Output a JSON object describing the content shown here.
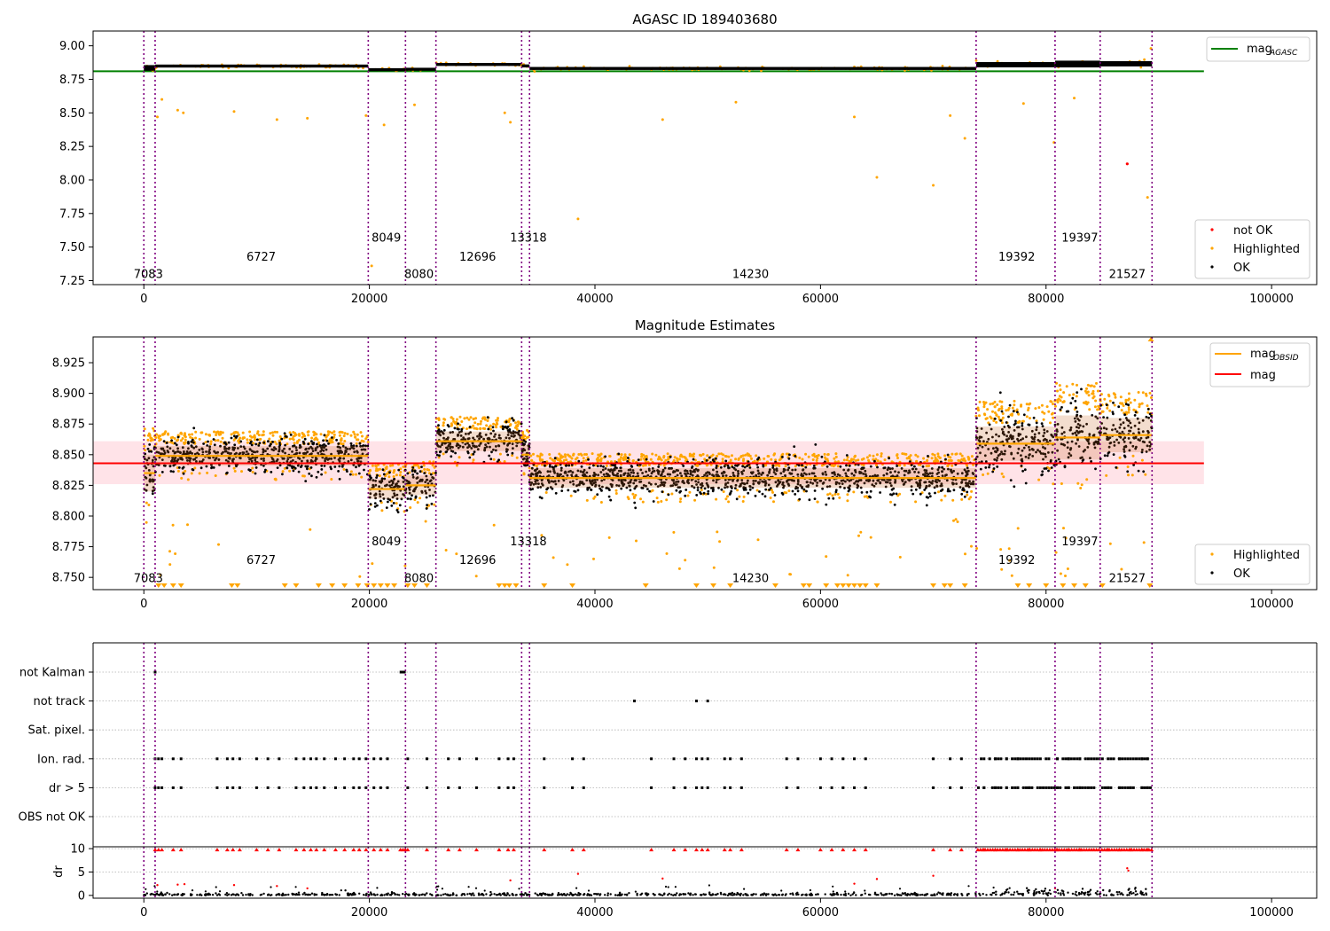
{
  "colors": {
    "axis": "#000000",
    "ok": "#000000",
    "highlighted": "#ffa500",
    "not_ok": "#ff0000",
    "obs_line": "#800080",
    "agasc_line": "#008000",
    "mean_line": "#ff0000",
    "band": "#ffc0cb",
    "obsid_line": "#ffa500"
  },
  "chart_data": [
    {
      "type": "scatter",
      "title": "AGASC ID 189403680",
      "xlim": [
        -4500,
        104000
      ],
      "ylim": [
        7.22,
        9.11
      ],
      "xticks": [
        0,
        20000,
        40000,
        60000,
        80000,
        100000
      ],
      "xtick_labels": [
        "0",
        "20000",
        "40000",
        "60000",
        "80000",
        "100000"
      ],
      "yticks": [
        7.25,
        7.5,
        7.75,
        8.0,
        8.25,
        8.5,
        8.75,
        9.0
      ],
      "ytick_labels": [
        "7.25",
        "7.50",
        "7.75",
        "8.00",
        "8.25",
        "8.50",
        "8.75",
        "9.00"
      ],
      "obs_boundaries": [
        0,
        1000,
        19900,
        23200,
        25900,
        33500,
        34200,
        73800,
        80800,
        84800,
        89400
      ],
      "obs_labels": [
        {
          "x": 400,
          "y": 7.27,
          "text": "7083"
        },
        {
          "x": 10400,
          "y": 7.4,
          "text": "6727"
        },
        {
          "x": 21500,
          "y": 7.54,
          "text": "8049"
        },
        {
          "x": 24400,
          "y": 7.27,
          "text": "8080"
        },
        {
          "x": 29600,
          "y": 7.4,
          "text": "12696"
        },
        {
          "x": 34100,
          "y": 7.54,
          "text": "13318"
        },
        {
          "x": 53800,
          "y": 7.27,
          "text": "14230"
        },
        {
          "x": 77400,
          "y": 7.4,
          "text": "19392"
        },
        {
          "x": 83000,
          "y": 7.54,
          "text": "19397"
        },
        {
          "x": 87200,
          "y": 7.27,
          "text": "21527"
        }
      ],
      "segments": [
        {
          "x0": 0,
          "x1": 1000,
          "y": 8.835,
          "spread": 0.015
        },
        {
          "x0": 1000,
          "x1": 19900,
          "y": 8.849,
          "spread": 0.008
        },
        {
          "x0": 19900,
          "x1": 23200,
          "y": 8.822,
          "spread": 0.008
        },
        {
          "x0": 23200,
          "x1": 25900,
          "y": 8.825,
          "spread": 0.008
        },
        {
          "x0": 25900,
          "x1": 33500,
          "y": 8.861,
          "spread": 0.008
        },
        {
          "x0": 33500,
          "x1": 34200,
          "y": 8.85,
          "spread": 0.008
        },
        {
          "x0": 34200,
          "x1": 73800,
          "y": 8.831,
          "spread": 0.008
        },
        {
          "x0": 73800,
          "x1": 80800,
          "y": 8.859,
          "spread": 0.014
        },
        {
          "x0": 80800,
          "x1": 84800,
          "y": 8.864,
          "spread": 0.018
        },
        {
          "x0": 84800,
          "x1": 89400,
          "y": 8.866,
          "spread": 0.014
        }
      ],
      "agasc_mag": 8.81,
      "agasc_line_xlim": [
        -4500,
        94000
      ],
      "not_ok_points": [
        {
          "x": 87200,
          "y": 8.12
        }
      ],
      "highlighted_outliers": [
        {
          "x": 1200,
          "y": 8.47
        },
        {
          "x": 1600,
          "y": 8.6
        },
        {
          "x": 3000,
          "y": 8.52
        },
        {
          "x": 3500,
          "y": 8.5
        },
        {
          "x": 8000,
          "y": 8.51
        },
        {
          "x": 11800,
          "y": 8.45
        },
        {
          "x": 14500,
          "y": 8.46
        },
        {
          "x": 19700,
          "y": 8.48
        },
        {
          "x": 20200,
          "y": 7.36
        },
        {
          "x": 21300,
          "y": 8.41
        },
        {
          "x": 24000,
          "y": 8.56
        },
        {
          "x": 32000,
          "y": 8.5
        },
        {
          "x": 32500,
          "y": 8.43
        },
        {
          "x": 38500,
          "y": 7.71
        },
        {
          "x": 46000,
          "y": 8.45
        },
        {
          "x": 52500,
          "y": 8.58
        },
        {
          "x": 63000,
          "y": 8.47
        },
        {
          "x": 65000,
          "y": 8.02
        },
        {
          "x": 70000,
          "y": 7.96
        },
        {
          "x": 71500,
          "y": 8.48
        },
        {
          "x": 72800,
          "y": 8.31
        },
        {
          "x": 78000,
          "y": 8.57
        },
        {
          "x": 80700,
          "y": 8.28
        },
        {
          "x": 82500,
          "y": 8.61
        },
        {
          "x": 89000,
          "y": 7.87
        },
        {
          "x": 89300,
          "y": 8.98
        }
      ],
      "legend_top": [
        {
          "label": "mag",
          "sub": "AGASC",
          "color": "#008000",
          "marker": "line"
        }
      ],
      "legend_bottom": [
        {
          "label": "not OK",
          "color": "#ff0000",
          "marker": "dot"
        },
        {
          "label": "Highlighted",
          "color": "#ffa500",
          "marker": "dot"
        },
        {
          "label": "OK",
          "color": "#000000",
          "marker": "dot"
        }
      ]
    },
    {
      "type": "scatter",
      "title": "Magnitude Estimates",
      "xlim": [
        -4500,
        104000
      ],
      "ylim": [
        8.74,
        8.946
      ],
      "xticks": [
        0,
        20000,
        40000,
        60000,
        80000,
        100000
      ],
      "xtick_labels": [
        "0",
        "20000",
        "40000",
        "60000",
        "80000",
        "100000"
      ],
      "yticks": [
        8.75,
        8.775,
        8.8,
        8.825,
        8.85,
        8.875,
        8.9,
        8.925
      ],
      "ytick_labels": [
        "8.750",
        "8.775",
        "8.800",
        "8.825",
        "8.850",
        "8.875",
        "8.900",
        "8.925"
      ],
      "obs_labels": [
        {
          "x": 400,
          "y": 8.746,
          "text": "7083"
        },
        {
          "x": 10400,
          "y": 8.761,
          "text": "6727"
        },
        {
          "x": 21500,
          "y": 8.776,
          "text": "8049"
        },
        {
          "x": 24400,
          "y": 8.746,
          "text": "8080"
        },
        {
          "x": 29600,
          "y": 8.761,
          "text": "12696"
        },
        {
          "x": 34100,
          "y": 8.776,
          "text": "13318"
        },
        {
          "x": 53800,
          "y": 8.746,
          "text": "14230"
        },
        {
          "x": 77400,
          "y": 8.761,
          "text": "19392"
        },
        {
          "x": 83000,
          "y": 8.776,
          "text": "19397"
        },
        {
          "x": 87200,
          "y": 8.746,
          "text": "21527"
        }
      ],
      "mean_mag": 8.843,
      "mean_band": [
        8.826,
        8.861
      ],
      "mean_line_xlim": [
        -4500,
        94000
      ],
      "clipped_markers_x": [
        1300,
        1800,
        2600,
        3300,
        7800,
        8300,
        12500,
        13500,
        15500,
        16700,
        17800,
        19000,
        19800,
        20400,
        21000,
        21600,
        22200,
        23400,
        24000,
        25100,
        31500,
        32000,
        32400,
        33000,
        35500,
        38000,
        44500,
        49000,
        50500,
        52000,
        56000,
        58500,
        59000,
        60500,
        61500,
        62000,
        62500,
        63000,
        63500,
        64000,
        65000,
        70000,
        71000,
        71500,
        72800,
        77500,
        78500,
        80000,
        81500,
        82500,
        83500,
        85000,
        89200
      ],
      "legend_top": [
        {
          "label": "mag",
          "sub": "OBSID",
          "color": "#ffa500",
          "marker": "line"
        },
        {
          "label": "mag",
          "sub": "",
          "color": "#ff0000",
          "marker": "line"
        }
      ],
      "legend_bottom": [
        {
          "label": "Highlighted",
          "color": "#ffa500",
          "marker": "dot"
        },
        {
          "label": "OK",
          "color": "#000000",
          "marker": "dot"
        }
      ]
    },
    {
      "type": "scatter",
      "title": "",
      "xlim": [
        -4500,
        104000
      ],
      "xticks": [
        0,
        20000,
        40000,
        60000,
        80000,
        100000
      ],
      "xtick_labels": [
        "0",
        "20000",
        "40000",
        "60000",
        "80000",
        "100000"
      ],
      "flag_rows": [
        "not Kalman",
        "not track",
        "Sat. pixel.",
        "Ion. rad.",
        "dr > 5",
        "OBS not OK"
      ],
      "flag_points": {
        "not Kalman": [
          22800,
          22900,
          23000,
          23100,
          1000
        ],
        "not track": [
          43500,
          49000,
          50000
        ],
        "Sat. pixel.": [],
        "Ion. rad.": [
          1000,
          1300,
          1600,
          2600,
          3300,
          6500,
          7400,
          7900,
          8500,
          10000,
          11000,
          12000,
          13500,
          14200,
          14800,
          15300,
          16000,
          17000,
          17800,
          18600,
          19100,
          19700,
          20400,
          21000,
          21600,
          23400,
          25100,
          27000,
          28000,
          29500,
          31500,
          32300,
          32800,
          35500,
          38000,
          39000,
          45000,
          47000,
          48000,
          49000,
          49500,
          50000,
          51500,
          52000,
          53000,
          57000,
          58000,
          60000,
          61000,
          62000,
          63000,
          64000,
          70000,
          71500,
          72500,
          74500,
          75500,
          76500,
          77500,
          78500,
          79500,
          81000,
          82000,
          83000,
          85500,
          86500,
          87500,
          88500,
          89000
        ],
        "dr > 5": [
          1000,
          1300,
          1600,
          2600,
          3300,
          6500,
          7400,
          7900,
          8500,
          10000,
          11000,
          12000,
          13500,
          14200,
          14800,
          15300,
          16000,
          17000,
          17800,
          18600,
          19100,
          19700,
          20400,
          21000,
          21600,
          23400,
          25100,
          27000,
          28000,
          29500,
          31500,
          32300,
          32800,
          35500,
          38000,
          39000,
          45000,
          47000,
          48000,
          49000,
          49500,
          50000,
          51500,
          52000,
          53000,
          57000,
          58000,
          60000,
          61000,
          62000,
          63000,
          64000,
          70000,
          71500,
          72500,
          74500,
          75500,
          76500,
          77500,
          78500,
          79500,
          81000,
          82000,
          83000,
          85500,
          86500,
          87500,
          88500,
          89000
        ],
        "OBS not OK": []
      }
    },
    {
      "type": "scatter",
      "title": "",
      "ylabel": "dr",
      "xlim": [
        -4500,
        104000
      ],
      "ylim": [
        -0.6,
        10.4
      ],
      "xticks": [
        0,
        20000,
        40000,
        60000,
        80000,
        100000
      ],
      "xtick_labels": [
        "0",
        "20000",
        "40000",
        "60000",
        "80000",
        "100000"
      ],
      "yticks": [
        0,
        5,
        10
      ],
      "ytick_labels": [
        "0",
        "5",
        "10"
      ],
      "dr_outliers": [
        {
          "x": 1200,
          "y": 2.2
        },
        {
          "x": 3000,
          "y": 2.3
        },
        {
          "x": 3600,
          "y": 2.4
        },
        {
          "x": 8000,
          "y": 2.2
        },
        {
          "x": 11800,
          "y": 2.0
        },
        {
          "x": 14500,
          "y": 1.5
        },
        {
          "x": 32500,
          "y": 3.2
        },
        {
          "x": 38500,
          "y": 4.6
        },
        {
          "x": 46000,
          "y": 3.6
        },
        {
          "x": 63000,
          "y": 2.5
        },
        {
          "x": 65000,
          "y": 3.5
        },
        {
          "x": 70000,
          "y": 4.2
        },
        {
          "x": 80800,
          "y": 1.5
        },
        {
          "x": 87200,
          "y": 5.8
        },
        {
          "x": 87300,
          "y": 5.3
        }
      ]
    }
  ]
}
